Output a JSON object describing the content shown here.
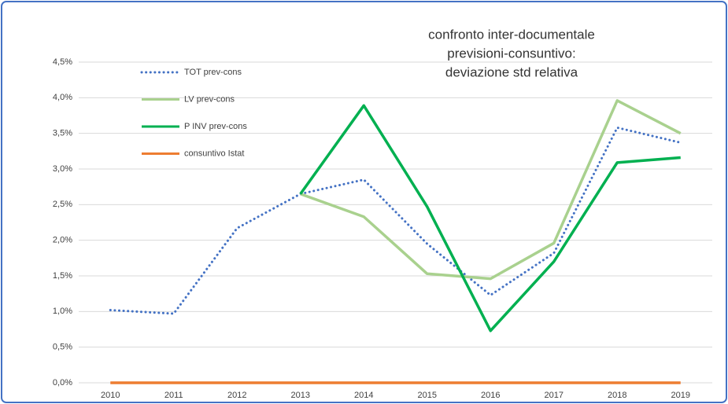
{
  "chart_data": {
    "type": "line",
    "title": [
      "confronto inter-documentale",
      "previsioni-consuntivo:",
      "deviazione std relativa"
    ],
    "categories": [
      "2010",
      "2011",
      "2012",
      "2013",
      "2014",
      "2015",
      "2016",
      "2017",
      "2018",
      "2019"
    ],
    "series": [
      {
        "name": "TOT prev-cons",
        "color": "#4472c4",
        "style": "dotted",
        "values": [
          1.02,
          0.97,
          2.17,
          2.65,
          2.85,
          1.95,
          1.23,
          1.82,
          3.58,
          3.37
        ]
      },
      {
        "name": "LV prev-cons",
        "color": "#a9d18e",
        "style": "solid",
        "values": [
          null,
          null,
          null,
          2.65,
          2.33,
          1.53,
          1.46,
          1.96,
          3.96,
          3.5
        ]
      },
      {
        "name": "P INV prev-cons",
        "color": "#00b050",
        "style": "solid",
        "values": [
          null,
          null,
          null,
          2.65,
          3.89,
          2.47,
          0.73,
          1.7,
          3.09,
          3.16
        ]
      },
      {
        "name": "consuntivo Istat",
        "color": "#ed7d31",
        "style": "solid",
        "values": [
          0,
          0,
          0,
          0,
          0,
          0,
          0,
          0,
          0,
          0
        ]
      }
    ],
    "ylim": [
      0,
      4.5
    ],
    "yticks": [
      {
        "value": 0,
        "label": "0,0%"
      },
      {
        "value": 0.5,
        "label": "0,5%"
      },
      {
        "value": 1,
        "label": "1,0%"
      },
      {
        "value": 1.5,
        "label": "1,5%"
      },
      {
        "value": 2,
        "label": "2,0%"
      },
      {
        "value": 2.5,
        "label": "2,5%"
      },
      {
        "value": 3,
        "label": "3,0%"
      },
      {
        "value": 3.5,
        "label": "3,5%"
      },
      {
        "value": 4,
        "label": "4,0%"
      },
      {
        "value": 4.5,
        "label": "4,5%"
      }
    ],
    "grid": true,
    "legend": "top-left"
  }
}
